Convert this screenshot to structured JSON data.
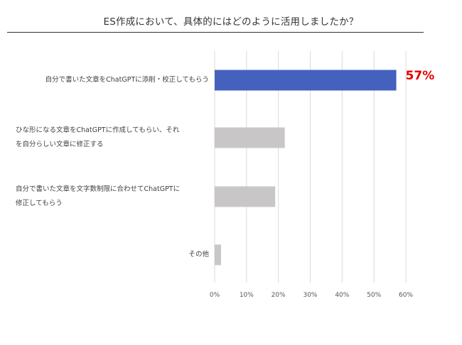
{
  "chart_data": {
    "type": "bar",
    "orientation": "horizontal",
    "title": "ES作成において、具体的にはどのように活用しましたか？",
    "xlabel": "",
    "ylabel": "",
    "xlim": [
      0,
      60
    ],
    "x_ticks": [
      "0%",
      "10%",
      "20%",
      "30%",
      "40%",
      "50%",
      "60%"
    ],
    "grid": "vertical",
    "categories": [
      "自分で書いた文章をChatGPTに添削・校正してもらう",
      "ひな形になる文章をChatGPTに作成してもらい、それを自分らしい文章に修正する",
      "自分で書いた文章を文字数制限に合わせてChatGPTに修正してもらう",
      "その他"
    ],
    "values": [
      57,
      22,
      19,
      2
    ],
    "bar_colors": [
      "#4561be",
      "#c8c6c7",
      "#c8c6c7",
      "#c8c6c7"
    ],
    "data_labels": [
      "57%",
      "",
      "",
      ""
    ],
    "highlight_color": "#e60000"
  },
  "category_lines": [
    [
      "自分で書いた文章をChatGPTに添削・校正してもらう"
    ],
    [
      "ひな形になる文章をChatGPTに作成してもらい、それ",
      "を自分らしい文章に修正する"
    ],
    [
      "自分で書いた文章を文字数制限に合わせてChatGPTに",
      "修正してもらう"
    ],
    [
      "その他"
    ]
  ]
}
